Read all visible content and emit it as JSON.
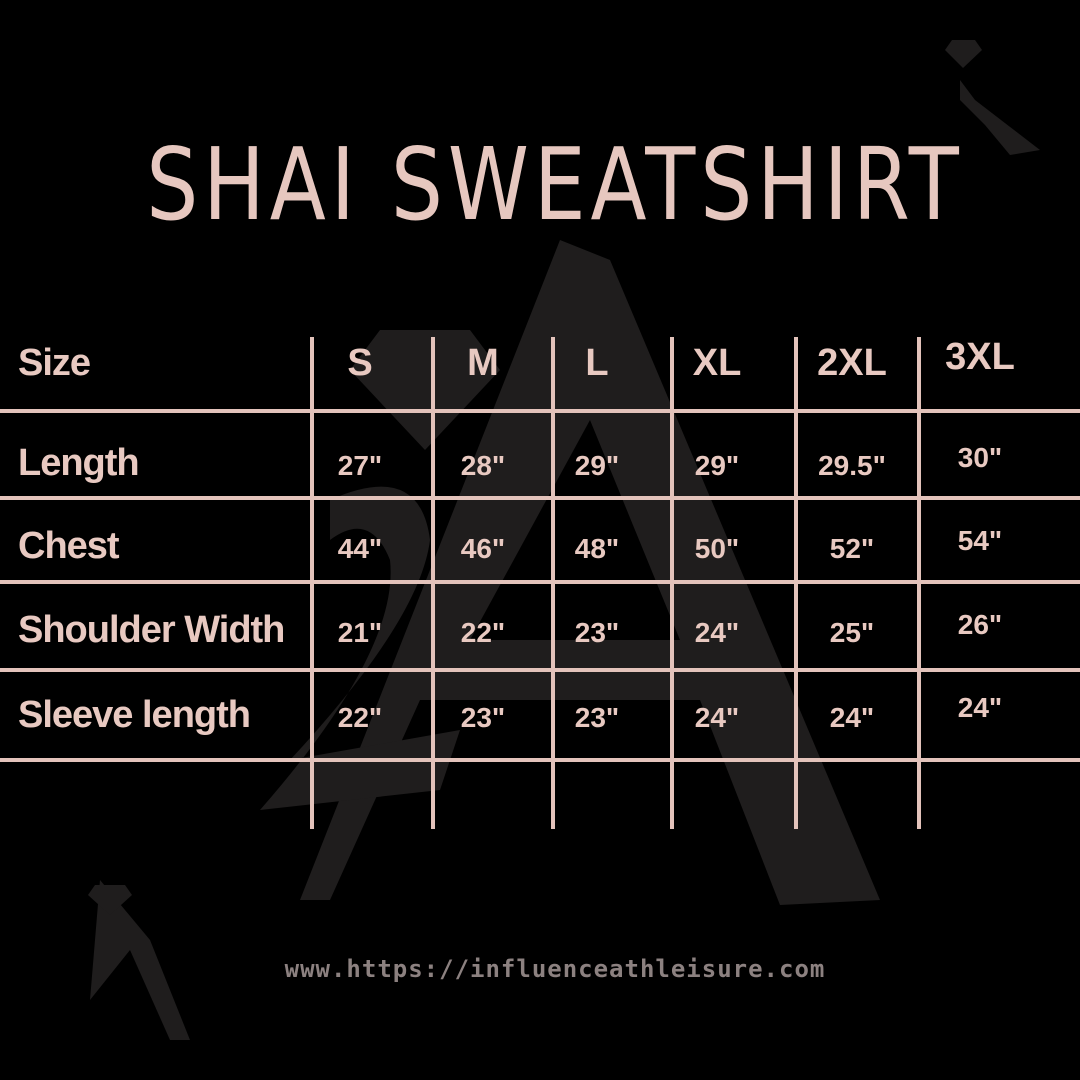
{
  "title": "SHAI SWEATSHIRT",
  "table": {
    "header_label": "Size",
    "sizes": [
      "S",
      "M",
      "L",
      "XL",
      "2XL",
      "3XL"
    ],
    "rows": [
      {
        "label": "Length",
        "values": [
          "27\"",
          "28\"",
          "29\"",
          "29\"",
          "29.5\"",
          "30\""
        ]
      },
      {
        "label": "Chest",
        "values": [
          "44\"",
          "46\"",
          "48\"",
          "50\"",
          "52\"",
          "54\""
        ]
      },
      {
        "label": "Shoulder Width",
        "values": [
          "21\"",
          "22\"",
          "23\"",
          "24\"",
          "25\"",
          "26\""
        ]
      },
      {
        "label": "Sleeve length",
        "values": [
          "22\"",
          "23\"",
          "23\"",
          "24\"",
          "24\"",
          "24\""
        ]
      }
    ]
  },
  "footer_url": "www.https://influenceathleisure.com",
  "colors": {
    "text": "#e8c9c1",
    "background": "#000000",
    "url": "#8c8180",
    "watermark": "#262424"
  },
  "logo_text": "2A"
}
